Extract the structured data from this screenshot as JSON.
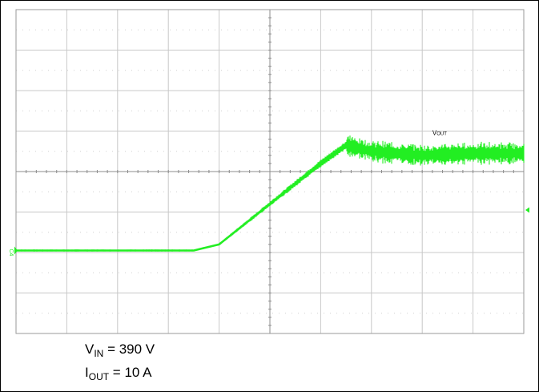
{
  "chart_data": {
    "type": "line",
    "xlim": [
      0,
      10
    ],
    "ylim": [
      0,
      8
    ],
    "grid": true,
    "grid_style": "dotted",
    "x_divisions": 10,
    "y_divisions": 8,
    "background_color": "#ffffff",
    "grid_color": "#c8c8c8",
    "series": [
      {
        "name": "VOUT",
        "color": "#22ee22",
        "noisy": true,
        "x": [
          0,
          3.0,
          3.5,
          4.0,
          5.0,
          6.0,
          6.5,
          7.0,
          8.0,
          9.0,
          10.0
        ],
        "y": [
          2.05,
          2.05,
          2.05,
          2.2,
          3.2,
          4.2,
          4.65,
          4.5,
          4.4,
          4.45,
          4.45
        ]
      }
    ],
    "trace_label": {
      "prefix": "V",
      "sub": "OUT"
    },
    "channel_marker": "C4",
    "ground_level": 2.05,
    "trigger_level": 3.05
  },
  "notes": {
    "vin_prefix": "V",
    "vin_sub": "IN",
    "vin_value": " = 390 V",
    "iout_prefix": "I",
    "iout_sub": "OUT",
    "iout_value": " = 10 A"
  }
}
